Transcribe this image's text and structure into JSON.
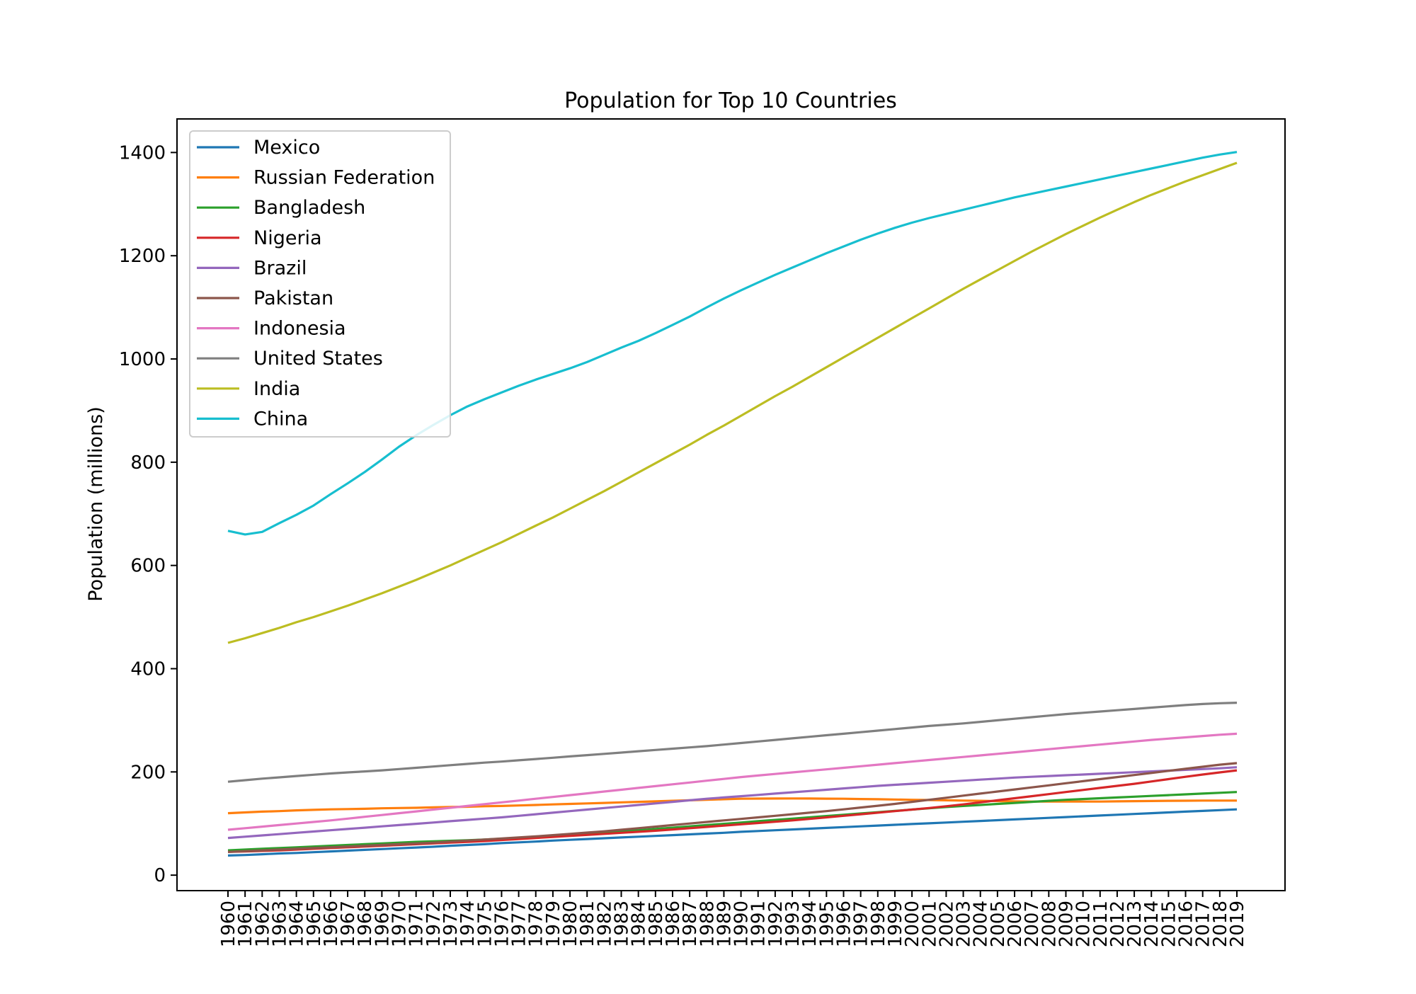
{
  "chart_data": {
    "type": "line",
    "title": "Population for Top 10 Countries",
    "xlabel": "",
    "ylabel": "Population (millions)",
    "ylim": [
      -30,
      1465
    ],
    "yticks": [
      0,
      200,
      400,
      600,
      800,
      1000,
      1200,
      1400
    ],
    "grid": false,
    "legend_position": "top-left",
    "x": [
      "1960",
      "1961",
      "1962",
      "1963",
      "1964",
      "1965",
      "1966",
      "1967",
      "1968",
      "1969",
      "1970",
      "1971",
      "1972",
      "1973",
      "1974",
      "1975",
      "1976",
      "1977",
      "1978",
      "1979",
      "1980",
      "1981",
      "1982",
      "1983",
      "1984",
      "1985",
      "1986",
      "1987",
      "1988",
      "1989",
      "1990",
      "1991",
      "1992",
      "1993",
      "1994",
      "1995",
      "1996",
      "1997",
      "1998",
      "1999",
      "2000",
      "2001",
      "2002",
      "2003",
      "2004",
      "2005",
      "2006",
      "2007",
      "2008",
      "2009",
      "2010",
      "2011",
      "2012",
      "2013",
      "2014",
      "2015",
      "2016",
      "2017",
      "2018",
      "2019"
    ],
    "series": [
      {
        "name": "Mexico",
        "color": "#1f77b4",
        "values": [
          38,
          39,
          40.5,
          42,
          43,
          44.5,
          46,
          47.5,
          49,
          50.5,
          52,
          53.5,
          55,
          57,
          58.5,
          60,
          62,
          63.5,
          65,
          67,
          68.5,
          70,
          71.5,
          73,
          74.5,
          76,
          77.5,
          79,
          80.5,
          82,
          84,
          85.5,
          87,
          88.5,
          90,
          91.5,
          93,
          94.5,
          96,
          97.5,
          99,
          100.5,
          102,
          103.5,
          105,
          106.5,
          108,
          109.5,
          111,
          112.5,
          114,
          115.5,
          117,
          118.5,
          120,
          121.5,
          123,
          124.5,
          126,
          127.5
        ]
      },
      {
        "name": "Russian Federation",
        "color": "#ff7f0e",
        "values": [
          120,
          121.5,
          123,
          124,
          125.5,
          126.5,
          127.5,
          128,
          128.5,
          129.5,
          130,
          130.5,
          131.5,
          132,
          132.5,
          133.5,
          134,
          135,
          136,
          137,
          138,
          139,
          140,
          141,
          142,
          143,
          144,
          145,
          146,
          147,
          148,
          148.3,
          148.5,
          148.6,
          148.4,
          148.2,
          148,
          147.5,
          147,
          146.5,
          146,
          145.5,
          145,
          144.5,
          144,
          143.5,
          143,
          142.5,
          142.5,
          142.5,
          142.5,
          142.5,
          143,
          143.3,
          143.6,
          144,
          144.2,
          144.5,
          144.5,
          144.4
        ]
      },
      {
        "name": "Bangladesh",
        "color": "#2ca02c",
        "values": [
          48,
          49.5,
          51,
          52.5,
          54,
          55.5,
          57,
          58.5,
          60,
          61.5,
          63,
          64.5,
          65.5,
          66.5,
          67.5,
          69,
          70.5,
          72,
          74,
          76,
          78,
          80,
          82,
          84.5,
          87,
          89.5,
          92,
          94.5,
          97,
          99.5,
          102,
          104.5,
          107,
          109.5,
          112,
          114.5,
          117,
          119.5,
          122,
          124.5,
          127,
          129.5,
          132,
          134,
          136,
          138,
          140,
          142,
          144,
          146,
          147.5,
          149,
          150.5,
          152,
          153.5,
          155,
          156.5,
          158,
          159.5,
          161
        ]
      },
      {
        "name": "Nigeria",
        "color": "#d62728",
        "values": [
          45,
          46,
          47,
          48,
          49.5,
          51,
          52.5,
          54,
          55.5,
          57,
          58.5,
          60,
          61.5,
          63,
          64.5,
          66,
          68,
          70,
          72,
          74,
          76,
          78,
          80,
          82,
          84,
          86,
          88.5,
          91,
          93.5,
          96,
          98.5,
          101,
          103.5,
          106,
          109,
          112,
          115,
          118,
          121,
          124,
          127,
          130,
          133.5,
          137,
          141,
          145,
          149,
          153,
          157,
          161,
          165,
          169,
          173,
          177,
          181.5,
          186,
          190.5,
          195,
          199,
          203
        ]
      },
      {
        "name": "Brazil",
        "color": "#9467bd",
        "values": [
          72,
          74.5,
          77,
          79.5,
          82,
          84.5,
          87,
          89.5,
          92,
          94.5,
          97,
          99.5,
          102,
          104.5,
          107,
          109.5,
          112,
          115,
          118,
          121,
          124,
          127,
          130,
          133,
          136,
          139,
          142,
          145,
          148,
          150.5,
          153,
          155.5,
          158,
          160.5,
          163,
          165.5,
          168,
          170.5,
          173,
          175,
          177,
          179,
          181,
          183,
          185,
          187,
          189,
          190.5,
          192,
          193.5,
          195,
          196.5,
          198,
          199.5,
          201,
          202.5,
          204,
          205.5,
          207,
          209
        ]
      },
      {
        "name": "Pakistan",
        "color": "#8c564b",
        "values": [
          45,
          46.5,
          48,
          49.5,
          51,
          52.5,
          54,
          55.5,
          57,
          58.5,
          60,
          61.5,
          63,
          65,
          67,
          69,
          71,
          73,
          75,
          77.5,
          80,
          82.5,
          85,
          88,
          91,
          94,
          97,
          100,
          103,
          106,
          109,
          112,
          115,
          118,
          121,
          124,
          127.5,
          131,
          134.5,
          138,
          142,
          146,
          150,
          154,
          158,
          162,
          166,
          170,
          174,
          178,
          182,
          186,
          190,
          194,
          198,
          202,
          206,
          210,
          214,
          217
        ]
      },
      {
        "name": "Indonesia",
        "color": "#e377c2",
        "values": [
          88,
          91,
          94,
          97,
          100,
          103,
          106,
          109.5,
          113,
          116.5,
          120,
          123.5,
          127,
          130.5,
          134,
          137.5,
          141,
          144.5,
          148,
          151.5,
          155,
          158.5,
          162,
          165.5,
          169,
          172.5,
          176,
          179.5,
          183,
          186.5,
          190,
          193,
          196,
          199,
          202,
          205,
          208,
          211,
          214,
          217,
          220,
          223,
          226,
          229,
          232,
          235,
          238,
          241,
          244,
          247,
          250,
          253,
          256,
          259,
          262,
          264.5,
          267,
          269.5,
          272,
          274
        ]
      },
      {
        "name": "United States",
        "color": "#7f7f7f",
        "values": [
          181,
          184,
          187,
          189.5,
          192,
          194.5,
          197,
          199,
          201,
          203,
          205.5,
          208,
          210.5,
          213,
          215.5,
          218,
          220,
          222.5,
          225,
          227.5,
          230,
          232.5,
          235,
          237.5,
          240,
          242.5,
          245,
          247.5,
          250,
          253,
          256,
          259,
          262,
          265,
          268,
          271,
          274,
          277,
          280,
          283,
          286,
          289,
          291.5,
          294,
          297,
          300,
          303,
          306,
          309,
          312,
          314.5,
          317,
          319.5,
          322,
          324.5,
          327,
          329.5,
          331.5,
          333,
          334
        ]
      },
      {
        "name": "India",
        "color": "#bcbd22",
        "values": [
          450,
          459,
          469,
          479,
          490,
          500,
          511,
          522,
          534,
          546,
          559,
          572,
          586,
          600,
          615,
          630,
          645,
          661,
          677,
          693,
          710,
          727,
          744,
          762,
          780,
          798,
          816,
          834,
          853,
          871,
          890,
          909,
          928,
          946,
          965,
          984,
          1003,
          1022,
          1041,
          1060,
          1079,
          1098,
          1117,
          1136,
          1154,
          1172,
          1190,
          1208,
          1225,
          1242,
          1258,
          1274,
          1289,
          1304,
          1318,
          1331,
          1344,
          1356,
          1368,
          1380
        ]
      },
      {
        "name": "China",
        "color": "#17becf",
        "values": [
          667,
          660,
          665,
          682,
          698,
          716,
          738,
          759,
          781,
          805,
          830,
          852,
          872,
          891,
          908,
          922,
          935,
          948,
          960,
          971,
          982,
          994,
          1008,
          1022,
          1035,
          1050,
          1066,
          1082,
          1100,
          1117,
          1133,
          1148,
          1163,
          1177,
          1191,
          1205,
          1218,
          1231,
          1243,
          1254,
          1264,
          1273,
          1281,
          1289,
          1297,
          1305,
          1313,
          1320,
          1327,
          1334,
          1341,
          1348,
          1355,
          1362,
          1369,
          1376,
          1383,
          1390,
          1396,
          1401
        ]
      }
    ]
  }
}
